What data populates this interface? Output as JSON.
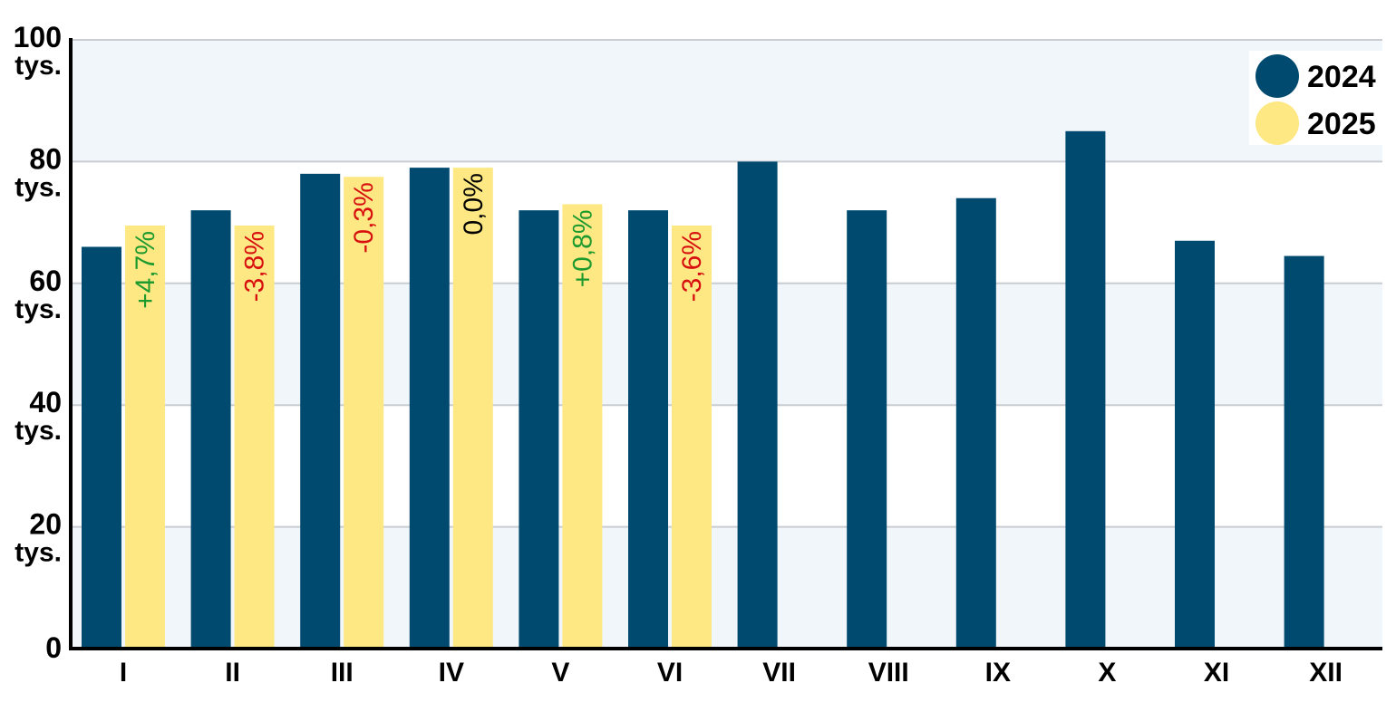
{
  "chart_data": {
    "type": "bar",
    "categories": [
      "I",
      "II",
      "III",
      "IV",
      "V",
      "VI",
      "VII",
      "VIII",
      "IX",
      "X",
      "XI",
      "XII"
    ],
    "series": [
      {
        "name": "2024",
        "color": "#004a6f",
        "values": [
          66,
          72,
          78,
          79,
          72,
          72,
          80,
          72,
          74,
          85,
          67,
          64.5
        ]
      },
      {
        "name": "2025",
        "color": "#fde883",
        "values": [
          69.5,
          69.5,
          77.5,
          79,
          73,
          69.5,
          null,
          null,
          null,
          null,
          null,
          null
        ]
      }
    ],
    "changes": [
      "+4,7%",
      "-3,8%",
      "-0,3%",
      "0,0%",
      "+0,8%",
      "-3,6%"
    ],
    "change_colors": [
      "#1e9a2e",
      "#d80f0f",
      "#d80f0f",
      "#000000",
      "#1e9a2e",
      "#d80f0f"
    ],
    "yticks": [
      {
        "value": 0,
        "line1": "0",
        "line2": ""
      },
      {
        "value": 20,
        "line1": "20",
        "line2": "tys."
      },
      {
        "value": 40,
        "line1": "40",
        "line2": "tys."
      },
      {
        "value": 60,
        "line1": "60",
        "line2": "tys."
      },
      {
        "value": 80,
        "line1": "80",
        "line2": "tys."
      },
      {
        "value": 100,
        "line1": "100",
        "line2": "tys."
      }
    ],
    "ylim": [
      0,
      100
    ],
    "grid": true,
    "legend_position": "top-right",
    "title": "",
    "xlabel": "",
    "ylabel": ""
  }
}
